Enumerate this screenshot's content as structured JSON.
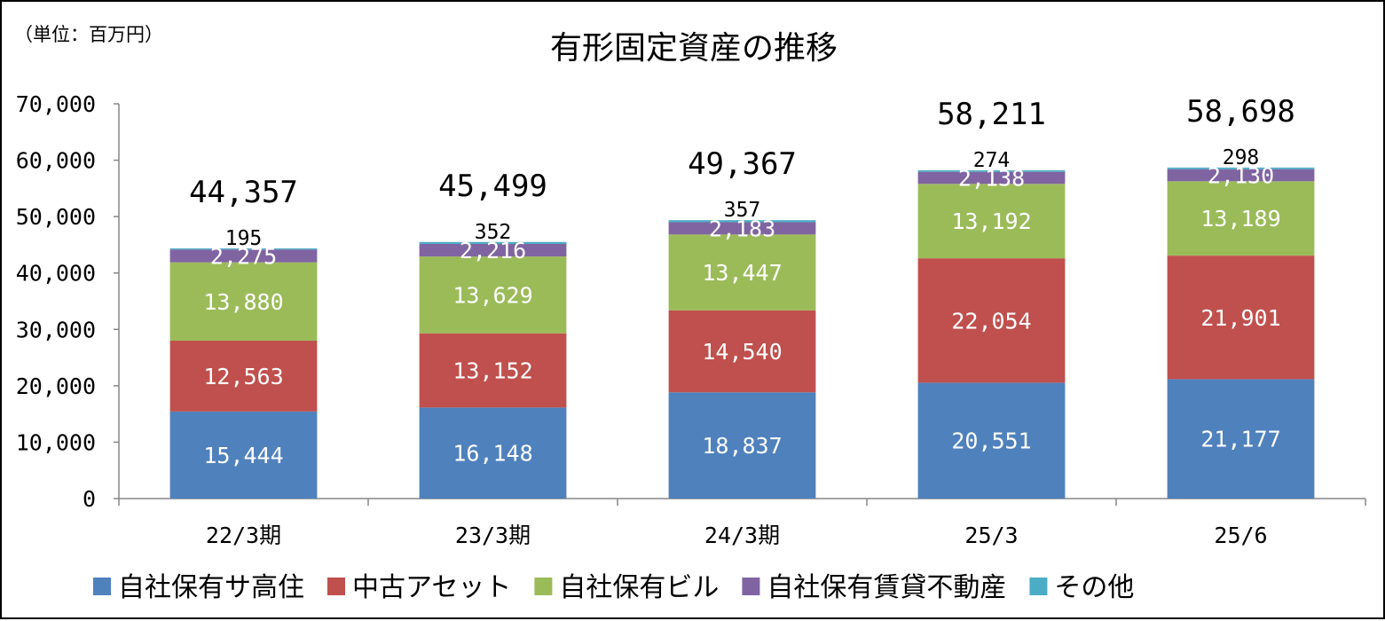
{
  "chart_data": {
    "type": "bar",
    "stacked": true,
    "title": "有形固定資産の推移",
    "unit": "（単位：百万円）",
    "ylim": [
      0,
      70000
    ],
    "yticks": [
      "0",
      "10,000",
      "20,000",
      "30,000",
      "40,000",
      "50,000",
      "60,000",
      "70,000"
    ],
    "ytick_values": [
      0,
      10000,
      20000,
      30000,
      40000,
      50000,
      60000,
      70000
    ],
    "grid": false,
    "legend_position": "bottom",
    "categories": [
      "22/3期",
      "23/3期",
      "24/3期",
      "25/3",
      "25/6"
    ],
    "series": [
      {
        "name": "自社保有サ高住",
        "color": "#4F81BD",
        "values": [
          15444,
          16148,
          18837,
          20551,
          21177
        ],
        "labels": [
          "15,444",
          "16,148",
          "18,837",
          "20,551",
          "21,177"
        ]
      },
      {
        "name": "中古アセット",
        "color": "#C0504D",
        "values": [
          12563,
          13152,
          14540,
          22054,
          21901
        ],
        "labels": [
          "12,563",
          "13,152",
          "14,540",
          "22,054",
          "21,901"
        ]
      },
      {
        "name": "自社保有ビル",
        "color": "#9BBB59",
        "values": [
          13880,
          13629,
          13447,
          13192,
          13189
        ],
        "labels": [
          "13,880",
          "13,629",
          "13,447",
          "13,192",
          "13,189"
        ]
      },
      {
        "name": "自社保有賃貸不動産",
        "color": "#8064A2",
        "values": [
          2275,
          2216,
          2183,
          2138,
          2130
        ],
        "labels": [
          "2,275",
          "2,216",
          "2,183",
          "2,138",
          "2,130"
        ]
      },
      {
        "name": "その他",
        "color": "#4BACC6",
        "values": [
          195,
          352,
          357,
          274,
          298
        ],
        "labels": [
          "195",
          "352",
          "357",
          "274",
          "298"
        ]
      }
    ],
    "totals": [
      "44,357",
      "45,499",
      "49,367",
      "58,211",
      "58,698"
    ],
    "total_values": [
      44357,
      45499,
      49367,
      58211,
      58698
    ]
  }
}
